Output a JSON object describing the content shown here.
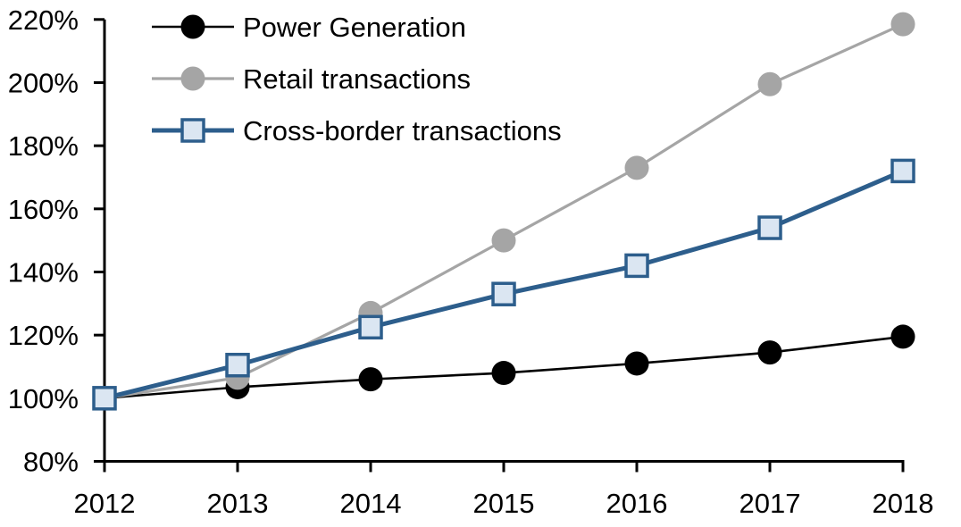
{
  "chart_data": {
    "type": "line",
    "title": "",
    "xlabel": "",
    "ylabel": "",
    "x": [
      2012,
      2013,
      2014,
      2015,
      2016,
      2017,
      2018
    ],
    "series": [
      {
        "name": "Power Generation",
        "values": [
          100,
          103.5,
          106,
          108,
          111,
          114.5,
          119.5
        ],
        "color": "#000000",
        "marker": "circle",
        "marker_fill": "#000000",
        "line_width": 2.6
      },
      {
        "name": "Retail transactions",
        "values": [
          100,
          106.5,
          127,
          150,
          173,
          199.5,
          218.5
        ],
        "color": "#A5A5A5",
        "marker": "circle",
        "marker_fill": "#A5A5A5",
        "line_width": 3.2
      },
      {
        "name": "Cross-border transactions",
        "values": [
          100,
          110.5,
          122.5,
          133,
          142,
          154,
          172
        ],
        "color": "#2D5E8C",
        "marker": "square",
        "marker_fill": "#DBE6F2",
        "line_width": 5
      }
    ],
    "ylim": [
      80,
      220
    ],
    "ytick_step": 20,
    "ytick_suffix": "%",
    "grid": false,
    "legend_position": "top-left",
    "axis_color": "#000000"
  }
}
